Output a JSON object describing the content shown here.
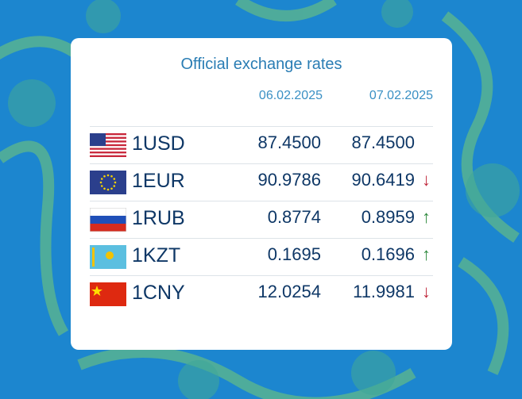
{
  "title": "Official exchange rates",
  "dates": [
    "06.02.2025",
    "07.02.2025"
  ],
  "rows": [
    {
      "currency": "1USD",
      "rates": [
        "87.4500",
        "87.4500"
      ],
      "trend": null
    },
    {
      "currency": "1EUR",
      "rates": [
        "90.9786",
        "90.6419"
      ],
      "trend": "↓"
    },
    {
      "currency": "1RUB",
      "rates": [
        "0.8774",
        "0.8959"
      ],
      "trend": "↑"
    },
    {
      "currency": "1KZT",
      "rates": [
        "0.1695",
        "0.1696"
      ],
      "trend": "↑"
    },
    {
      "currency": "1CNY",
      "rates": [
        "12.0254",
        "11.9981"
      ],
      "trend": "↓"
    }
  ]
}
